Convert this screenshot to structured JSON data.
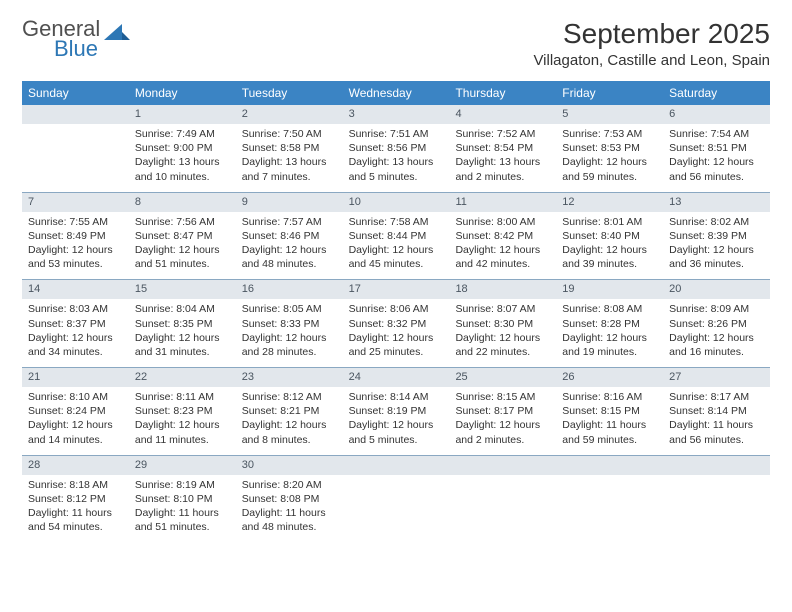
{
  "logo": {
    "text1": "General",
    "text2": "Blue"
  },
  "title": "September 2025",
  "location": "Villagaton, Castille and Leon, Spain",
  "colors": {
    "header_bar": "#3b84c4",
    "daynum_bg": "#e2e7ec",
    "divider": "#8aa8c2",
    "logo_grey": "#505050",
    "logo_blue": "#2d77b5"
  },
  "weekdays": [
    "Sunday",
    "Monday",
    "Tuesday",
    "Wednesday",
    "Thursday",
    "Friday",
    "Saturday"
  ],
  "weeks": [
    {
      "nums": [
        "",
        "1",
        "2",
        "3",
        "4",
        "5",
        "6"
      ],
      "cells": [
        {
          "sunrise": "",
          "sunset": "",
          "dlen1": "",
          "dlen2": ""
        },
        {
          "sunrise": "Sunrise: 7:49 AM",
          "sunset": "Sunset: 9:00 PM",
          "dlen1": "Daylight: 13 hours",
          "dlen2": "and 10 minutes."
        },
        {
          "sunrise": "Sunrise: 7:50 AM",
          "sunset": "Sunset: 8:58 PM",
          "dlen1": "Daylight: 13 hours",
          "dlen2": "and 7 minutes."
        },
        {
          "sunrise": "Sunrise: 7:51 AM",
          "sunset": "Sunset: 8:56 PM",
          "dlen1": "Daylight: 13 hours",
          "dlen2": "and 5 minutes."
        },
        {
          "sunrise": "Sunrise: 7:52 AM",
          "sunset": "Sunset: 8:54 PM",
          "dlen1": "Daylight: 13 hours",
          "dlen2": "and 2 minutes."
        },
        {
          "sunrise": "Sunrise: 7:53 AM",
          "sunset": "Sunset: 8:53 PM",
          "dlen1": "Daylight: 12 hours",
          "dlen2": "and 59 minutes."
        },
        {
          "sunrise": "Sunrise: 7:54 AM",
          "sunset": "Sunset: 8:51 PM",
          "dlen1": "Daylight: 12 hours",
          "dlen2": "and 56 minutes."
        }
      ]
    },
    {
      "nums": [
        "7",
        "8",
        "9",
        "10",
        "11",
        "12",
        "13"
      ],
      "cells": [
        {
          "sunrise": "Sunrise: 7:55 AM",
          "sunset": "Sunset: 8:49 PM",
          "dlen1": "Daylight: 12 hours",
          "dlen2": "and 53 minutes."
        },
        {
          "sunrise": "Sunrise: 7:56 AM",
          "sunset": "Sunset: 8:47 PM",
          "dlen1": "Daylight: 12 hours",
          "dlen2": "and 51 minutes."
        },
        {
          "sunrise": "Sunrise: 7:57 AM",
          "sunset": "Sunset: 8:46 PM",
          "dlen1": "Daylight: 12 hours",
          "dlen2": "and 48 minutes."
        },
        {
          "sunrise": "Sunrise: 7:58 AM",
          "sunset": "Sunset: 8:44 PM",
          "dlen1": "Daylight: 12 hours",
          "dlen2": "and 45 minutes."
        },
        {
          "sunrise": "Sunrise: 8:00 AM",
          "sunset": "Sunset: 8:42 PM",
          "dlen1": "Daylight: 12 hours",
          "dlen2": "and 42 minutes."
        },
        {
          "sunrise": "Sunrise: 8:01 AM",
          "sunset": "Sunset: 8:40 PM",
          "dlen1": "Daylight: 12 hours",
          "dlen2": "and 39 minutes."
        },
        {
          "sunrise": "Sunrise: 8:02 AM",
          "sunset": "Sunset: 8:39 PM",
          "dlen1": "Daylight: 12 hours",
          "dlen2": "and 36 minutes."
        }
      ]
    },
    {
      "nums": [
        "14",
        "15",
        "16",
        "17",
        "18",
        "19",
        "20"
      ],
      "cells": [
        {
          "sunrise": "Sunrise: 8:03 AM",
          "sunset": "Sunset: 8:37 PM",
          "dlen1": "Daylight: 12 hours",
          "dlen2": "and 34 minutes."
        },
        {
          "sunrise": "Sunrise: 8:04 AM",
          "sunset": "Sunset: 8:35 PM",
          "dlen1": "Daylight: 12 hours",
          "dlen2": "and 31 minutes."
        },
        {
          "sunrise": "Sunrise: 8:05 AM",
          "sunset": "Sunset: 8:33 PM",
          "dlen1": "Daylight: 12 hours",
          "dlen2": "and 28 minutes."
        },
        {
          "sunrise": "Sunrise: 8:06 AM",
          "sunset": "Sunset: 8:32 PM",
          "dlen1": "Daylight: 12 hours",
          "dlen2": "and 25 minutes."
        },
        {
          "sunrise": "Sunrise: 8:07 AM",
          "sunset": "Sunset: 8:30 PM",
          "dlen1": "Daylight: 12 hours",
          "dlen2": "and 22 minutes."
        },
        {
          "sunrise": "Sunrise: 8:08 AM",
          "sunset": "Sunset: 8:28 PM",
          "dlen1": "Daylight: 12 hours",
          "dlen2": "and 19 minutes."
        },
        {
          "sunrise": "Sunrise: 8:09 AM",
          "sunset": "Sunset: 8:26 PM",
          "dlen1": "Daylight: 12 hours",
          "dlen2": "and 16 minutes."
        }
      ]
    },
    {
      "nums": [
        "21",
        "22",
        "23",
        "24",
        "25",
        "26",
        "27"
      ],
      "cells": [
        {
          "sunrise": "Sunrise: 8:10 AM",
          "sunset": "Sunset: 8:24 PM",
          "dlen1": "Daylight: 12 hours",
          "dlen2": "and 14 minutes."
        },
        {
          "sunrise": "Sunrise: 8:11 AM",
          "sunset": "Sunset: 8:23 PM",
          "dlen1": "Daylight: 12 hours",
          "dlen2": "and 11 minutes."
        },
        {
          "sunrise": "Sunrise: 8:12 AM",
          "sunset": "Sunset: 8:21 PM",
          "dlen1": "Daylight: 12 hours",
          "dlen2": "and 8 minutes."
        },
        {
          "sunrise": "Sunrise: 8:14 AM",
          "sunset": "Sunset: 8:19 PM",
          "dlen1": "Daylight: 12 hours",
          "dlen2": "and 5 minutes."
        },
        {
          "sunrise": "Sunrise: 8:15 AM",
          "sunset": "Sunset: 8:17 PM",
          "dlen1": "Daylight: 12 hours",
          "dlen2": "and 2 minutes."
        },
        {
          "sunrise": "Sunrise: 8:16 AM",
          "sunset": "Sunset: 8:15 PM",
          "dlen1": "Daylight: 11 hours",
          "dlen2": "and 59 minutes."
        },
        {
          "sunrise": "Sunrise: 8:17 AM",
          "sunset": "Sunset: 8:14 PM",
          "dlen1": "Daylight: 11 hours",
          "dlen2": "and 56 minutes."
        }
      ]
    },
    {
      "nums": [
        "28",
        "29",
        "30",
        "",
        "",
        "",
        ""
      ],
      "cells": [
        {
          "sunrise": "Sunrise: 8:18 AM",
          "sunset": "Sunset: 8:12 PM",
          "dlen1": "Daylight: 11 hours",
          "dlen2": "and 54 minutes."
        },
        {
          "sunrise": "Sunrise: 8:19 AM",
          "sunset": "Sunset: 8:10 PM",
          "dlen1": "Daylight: 11 hours",
          "dlen2": "and 51 minutes."
        },
        {
          "sunrise": "Sunrise: 8:20 AM",
          "sunset": "Sunset: 8:08 PM",
          "dlen1": "Daylight: 11 hours",
          "dlen2": "and 48 minutes."
        },
        {
          "sunrise": "",
          "sunset": "",
          "dlen1": "",
          "dlen2": ""
        },
        {
          "sunrise": "",
          "sunset": "",
          "dlen1": "",
          "dlen2": ""
        },
        {
          "sunrise": "",
          "sunset": "",
          "dlen1": "",
          "dlen2": ""
        },
        {
          "sunrise": "",
          "sunset": "",
          "dlen1": "",
          "dlen2": ""
        }
      ]
    }
  ]
}
